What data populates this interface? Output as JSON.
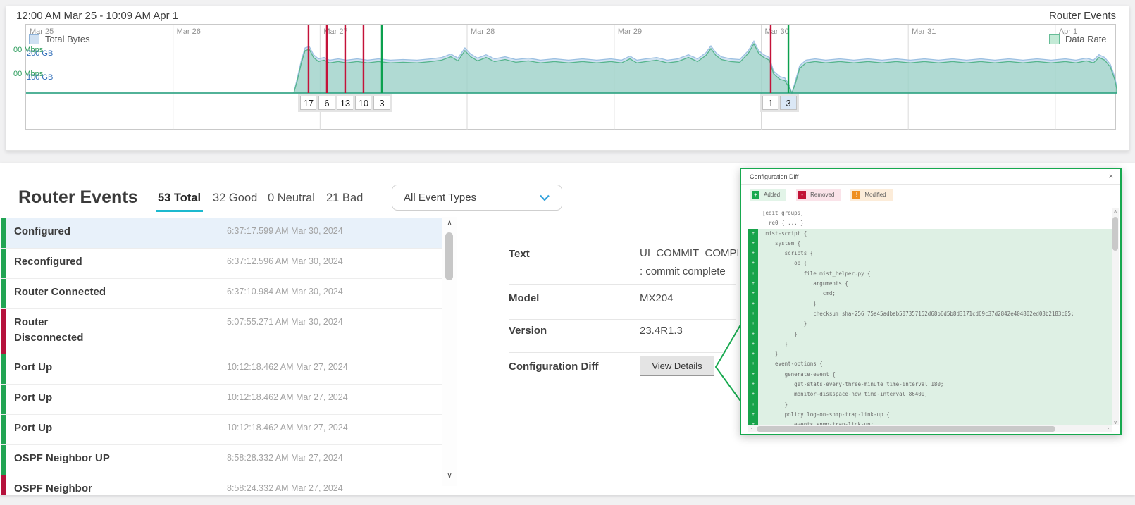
{
  "timeline_card": {
    "title": "12:00 AM Mar 25 - 10:09 AM Apr 1",
    "right_label": "Router Events",
    "legend_left": "Total Bytes",
    "legend_right": "Data Rate",
    "y_axis_green": [
      "00 Mbps",
      "00 Mbps"
    ],
    "y_axis_blue": [
      "200 GB",
      "100 GB"
    ]
  },
  "chart_data": {
    "type": "area",
    "title": "12:00 AM Mar 25 - 10:09 AM Apr 1",
    "legend": [
      "Total Bytes",
      "Data Rate"
    ],
    "x_axis": {
      "labels": [
        "Mar 25",
        "Mar 26",
        "Mar 27",
        "Mar 28",
        "Mar 29",
        "Mar 30",
        "Mar 31",
        "Apr 1"
      ],
      "fractions": [
        0,
        0.1348,
        0.2696,
        0.4044,
        0.5393,
        0.6741,
        0.8089,
        0.9437
      ]
    },
    "y_axis": {
      "blue_ticks": [
        "200 GB",
        "100 GB"
      ],
      "green_ticks": [
        "00 Mbps",
        "00 Mbps"
      ],
      "ylim": [
        0,
        100
      ]
    },
    "colors": {
      "data_rate_line": "#56b58d",
      "data_rate_fill": "rgba(150,214,185,0.55)",
      "total_bytes_line": "#9cc0e2",
      "total_bytes_fill": "rgba(170,200,230,0.55)",
      "zero_line": "#2da381",
      "bad_event": "#c41239",
      "good_event": "#0ba04e"
    },
    "points": [
      [
        0,
        0
      ],
      [
        0.2455,
        0
      ],
      [
        0.2487,
        18
      ],
      [
        0.2526,
        45
      ],
      [
        0.2558,
        62
      ],
      [
        0.2597,
        64
      ],
      [
        0.2636,
        52
      ],
      [
        0.2681,
        46
      ],
      [
        0.2733,
        48
      ],
      [
        0.2784,
        44
      ],
      [
        0.2862,
        46
      ],
      [
        0.2939,
        44
      ],
      [
        0.3036,
        46
      ],
      [
        0.3133,
        44
      ],
      [
        0.323,
        46
      ],
      [
        0.334,
        44
      ],
      [
        0.3456,
        45
      ],
      [
        0.3585,
        44
      ],
      [
        0.3714,
        46
      ],
      [
        0.3811,
        48
      ],
      [
        0.3895,
        53
      ],
      [
        0.396,
        47
      ],
      [
        0.4024,
        62
      ],
      [
        0.4076,
        53
      ],
      [
        0.4141,
        47
      ],
      [
        0.4218,
        52
      ],
      [
        0.4296,
        46
      ],
      [
        0.4393,
        49
      ],
      [
        0.449,
        45
      ],
      [
        0.4606,
        47
      ],
      [
        0.4716,
        44
      ],
      [
        0.4845,
        46
      ],
      [
        0.4974,
        44
      ],
      [
        0.5103,
        46
      ],
      [
        0.5233,
        44
      ],
      [
        0.5362,
        46
      ],
      [
        0.5459,
        44
      ],
      [
        0.5536,
        50
      ],
      [
        0.5601,
        44
      ],
      [
        0.5685,
        46
      ],
      [
        0.5782,
        48
      ],
      [
        0.5879,
        44
      ],
      [
        0.5976,
        46
      ],
      [
        0.6073,
        52
      ],
      [
        0.6157,
        46
      ],
      [
        0.6234,
        55
      ],
      [
        0.6279,
        65
      ],
      [
        0.6325,
        55
      ],
      [
        0.6376,
        49
      ],
      [
        0.646,
        46
      ],
      [
        0.6544,
        45
      ],
      [
        0.6622,
        58
      ],
      [
        0.6673,
        72
      ],
      [
        0.6718,
        58
      ],
      [
        0.6764,
        52
      ],
      [
        0.6815,
        48
      ],
      [
        0.6854,
        28
      ],
      [
        0.6912,
        20
      ],
      [
        0.6957,
        18
      ],
      [
        0.6996,
        8
      ],
      [
        0.7022,
        0
      ],
      [
        0.7054,
        14
      ],
      [
        0.7093,
        36
      ],
      [
        0.7151,
        44
      ],
      [
        0.7235,
        46
      ],
      [
        0.7332,
        44
      ],
      [
        0.7461,
        46
      ],
      [
        0.759,
        44
      ],
      [
        0.772,
        46
      ],
      [
        0.7849,
        44
      ],
      [
        0.7978,
        46
      ],
      [
        0.8107,
        44
      ],
      [
        0.8237,
        46
      ],
      [
        0.8366,
        44
      ],
      [
        0.8495,
        46
      ],
      [
        0.8624,
        44
      ],
      [
        0.8753,
        46
      ],
      [
        0.8883,
        44
      ],
      [
        0.9012,
        46
      ],
      [
        0.9141,
        44
      ],
      [
        0.927,
        46
      ],
      [
        0.9399,
        44
      ],
      [
        0.9529,
        46
      ],
      [
        0.9625,
        44
      ],
      [
        0.9722,
        47
      ],
      [
        0.9787,
        44
      ],
      [
        0.9838,
        52
      ],
      [
        0.989,
        48
      ],
      [
        0.9942,
        38
      ],
      [
        0.9981,
        20
      ],
      [
        1,
        6
      ]
    ],
    "total_bytes_offset": 4,
    "event_markers": [
      {
        "f": 0.259,
        "count": "17",
        "type": "bad",
        "selected": false
      },
      {
        "f": 0.2758,
        "count": "6",
        "type": "bad",
        "selected": false
      },
      {
        "f": 0.2926,
        "count": "13",
        "type": "bad",
        "selected": false
      },
      {
        "f": 0.3094,
        "count": "10",
        "type": "bad",
        "selected": false
      },
      {
        "f": 0.3262,
        "count": "3",
        "type": "good",
        "selected": false
      },
      {
        "f": 0.6828,
        "count": "1",
        "type": "bad",
        "selected": false
      },
      {
        "f": 0.699,
        "count": "3",
        "type": "good",
        "selected": true
      }
    ]
  },
  "events_panel": {
    "title": "Router Events",
    "tabs": [
      {
        "label": "53 Total",
        "active": true
      },
      {
        "label": "32 Good",
        "active": false
      },
      {
        "label": "0 Neutral",
        "active": false
      },
      {
        "label": "21 Bad",
        "active": false
      }
    ],
    "filter_dropdown": {
      "value": "All Event Types"
    },
    "list": [
      {
        "label": "Configured",
        "label2": "",
        "time": "6:37:17.599 AM Mar 30, 2024",
        "status": "good",
        "selected": true
      },
      {
        "label": "Reconfigured",
        "label2": "",
        "time": "6:37:12.596 AM Mar 30, 2024",
        "status": "good",
        "selected": false
      },
      {
        "label": "Router Connected",
        "label2": "",
        "time": "6:37:10.984 AM Mar 30, 2024",
        "status": "good",
        "selected": false
      },
      {
        "label": "Router",
        "label2": "Disconnected",
        "time": "5:07:55.271 AM Mar 30, 2024",
        "status": "bad",
        "selected": false
      },
      {
        "label": "Port Up",
        "label2": "",
        "time": "10:12:18.462 AM Mar 27, 2024",
        "status": "good",
        "selected": false
      },
      {
        "label": "Port Up",
        "label2": "",
        "time": "10:12:18.462 AM Mar 27, 2024",
        "status": "good",
        "selected": false
      },
      {
        "label": "Port Up",
        "label2": "",
        "time": "10:12:18.462 AM Mar 27, 2024",
        "status": "good",
        "selected": false
      },
      {
        "label": "OSPF Neighbor UP",
        "label2": "",
        "time": "8:58:28.332 AM Mar 27, 2024",
        "status": "good",
        "selected": false
      },
      {
        "label": "OSPF Neighbor",
        "label2": "",
        "time": "8:58:24.332 AM Mar 27, 2024",
        "status": "bad",
        "selected": false
      }
    ],
    "detail": {
      "text_label": "Text",
      "text_value_line1": "UI_COMMIT_COMPL",
      "text_value_line2": ": commit complete",
      "model_label": "Model",
      "model_value": "MX204",
      "version_label": "Version",
      "version_value": "23.4R1.3",
      "config_diff_label": "Configuration Diff",
      "view_details_button": "View Details"
    }
  },
  "diff_popup": {
    "title": "Configuration Diff",
    "close_icon": "×",
    "legend": [
      {
        "label": "Added",
        "symbol": "+",
        "color": "#17a94f",
        "bg": "#e2f4e8"
      },
      {
        "label": "Removed",
        "symbol": "-",
        "color": "#c11236",
        "bg": "#fae3e9"
      },
      {
        "label": "Modified",
        "symbol": "!",
        "color": "#ee8e20",
        "bg": "#fcecd9"
      }
    ],
    "lines": [
      {
        "text": "[edit groups]",
        "added": false
      },
      {
        "text": "  re0 { ... }",
        "added": false
      },
      {
        "text": " mist-script {",
        "added": true
      },
      {
        "text": "    system {",
        "added": true
      },
      {
        "text": "       scripts {",
        "added": true
      },
      {
        "text": "          op {",
        "added": true
      },
      {
        "text": "             file mist_helper.py {",
        "added": true
      },
      {
        "text": "                arguments {",
        "added": true
      },
      {
        "text": "                   cmd;",
        "added": true
      },
      {
        "text": "                }",
        "added": true
      },
      {
        "text": "                checksum sha-256 75a45adbab507357152d68b6d5b8d3171cd69c37d2842e404802ed03b2183c05;",
        "added": true
      },
      {
        "text": "             }",
        "added": true
      },
      {
        "text": "          }",
        "added": true
      },
      {
        "text": "       }",
        "added": true
      },
      {
        "text": "    }",
        "added": true
      },
      {
        "text": "    event-options {",
        "added": true
      },
      {
        "text": "       generate-event {",
        "added": true
      },
      {
        "text": "          get-stats-every-three-minute time-interval 180;",
        "added": true
      },
      {
        "text": "          monitor-diskspace-now time-interval 86400;",
        "added": true
      },
      {
        "text": "       }",
        "added": true
      },
      {
        "text": "       policy log-on-snmp-trap-link-up {",
        "added": true
      },
      {
        "text": "          events snmp-trap-link-up;",
        "added": true
      }
    ]
  },
  "icons": {
    "scroll_up": "∧",
    "scroll_down": "∨",
    "h_left": "‹",
    "h_right": "›"
  },
  "colors": {
    "accent_tab_underline": "#1cb9cf",
    "good": "#21a453",
    "bad": "#b5123c",
    "popup_border": "#17a94f",
    "selected_row_bg": "#e8f1fa",
    "dropdown_chevron": "#35a3dc"
  }
}
